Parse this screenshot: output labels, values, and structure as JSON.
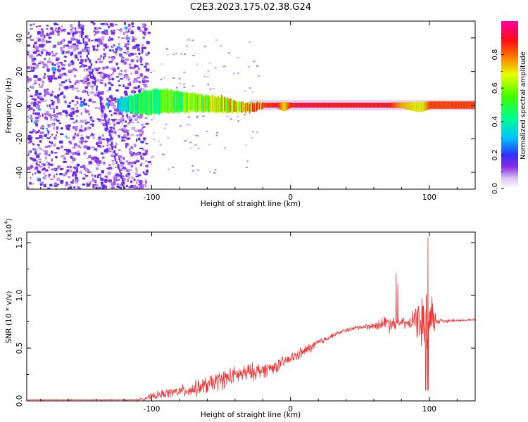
{
  "title": "C2E3.2023.175.02.38.G24",
  "chart_data": [
    {
      "type": "heatmap",
      "xlabel": "Height of straight line (km)",
      "ylabel": "Frequency (Hz)",
      "xlim": [
        -190,
        133
      ],
      "ylim": [
        -50,
        50
      ],
      "xticks": [
        -100,
        0,
        100
      ],
      "yticks": [
        -40,
        -20,
        0,
        20,
        40
      ],
      "grid": false,
      "colorbar": {
        "label": "Normalized spectral amplitude",
        "range": [
          0,
          1
        ],
        "ticks": [
          0.0,
          0.2,
          0.4,
          0.6,
          0.8
        ],
        "colormap": "white-purple-blue-cyan-green-yellow-red-magenta"
      },
      "ridge": {
        "description": "signal ridge near 0 Hz",
        "x": [
          -125,
          -110,
          -100,
          -90,
          -80,
          -70,
          -60,
          -50,
          -40,
          -30,
          -25,
          -20,
          -10,
          -5,
          0,
          10,
          30,
          50,
          70,
          80,
          90,
          95,
          100,
          110,
          133
        ],
        "center_hz": [
          0,
          1,
          2,
          2.5,
          2,
          1.5,
          1,
          0.5,
          -1,
          -1.5,
          -1,
          0,
          0,
          -1,
          0,
          0,
          0,
          0,
          0,
          0,
          -1,
          -1,
          0,
          0,
          0
        ],
        "halfwidth_hz": [
          2,
          4,
          5,
          4.5,
          4,
          3.5,
          3,
          3,
          2,
          1.5,
          1.5,
          1,
          1,
          2,
          1,
          1,
          1,
          1,
          1,
          1.2,
          2,
          2,
          1.5,
          1.5,
          1.5
        ],
        "peak_amplitude": [
          0.3,
          0.45,
          0.5,
          0.55,
          0.55,
          0.6,
          0.6,
          0.65,
          0.7,
          0.75,
          0.8,
          0.85,
          0.9,
          0.7,
          0.9,
          0.92,
          0.9,
          0.9,
          0.9,
          0.75,
          0.7,
          0.7,
          0.85,
          0.85,
          0.85
        ]
      },
      "noise_region_x": [
        -190,
        -103
      ]
    },
    {
      "type": "line",
      "xlabel": "Height of straight line (km)",
      "ylabel": "SNR (10 * v/v)",
      "y_multiplier": "(x10",
      "y_exponent": "4",
      "xlim": [
        -190,
        133
      ],
      "ylim": [
        0,
        1.6
      ],
      "xticks": [
        -100,
        0,
        100
      ],
      "yticks": [
        0.0,
        0.5,
        1.0,
        1.5
      ],
      "grid": false,
      "series": [
        {
          "color": "#ee3333",
          "x": [
            -190,
            -150,
            -110,
            -100,
            -90,
            -80,
            -70,
            -60,
            -50,
            -40,
            -30,
            -20,
            -10,
            0,
            10,
            20,
            30,
            40,
            50,
            60,
            65,
            70,
            75,
            80,
            85,
            90,
            95,
            100,
            105,
            110,
            120,
            133
          ],
          "y": [
            0.01,
            0.01,
            0.01,
            0.04,
            0.07,
            0.09,
            0.11,
            0.15,
            0.2,
            0.24,
            0.27,
            0.29,
            0.33,
            0.4,
            0.47,
            0.55,
            0.62,
            0.67,
            0.7,
            0.71,
            0.73,
            0.74,
            0.74,
            0.74,
            0.73,
            0.76,
            0.75,
            0.75,
            0.76,
            0.76,
            0.76,
            0.77
          ],
          "noise_amplitude": [
            0.003,
            0.004,
            0.005,
            0.03,
            0.04,
            0.05,
            0.07,
            0.08,
            0.09,
            0.08,
            0.08,
            0.07,
            0.06,
            0.05,
            0.05,
            0.04,
            0.02,
            0.02,
            0.02,
            0.03,
            0.05,
            0.09,
            0.06,
            0.05,
            0.05,
            0.12,
            0.25,
            0.35,
            0.04,
            0.02,
            0.01,
            0.01
          ]
        }
      ]
    }
  ]
}
